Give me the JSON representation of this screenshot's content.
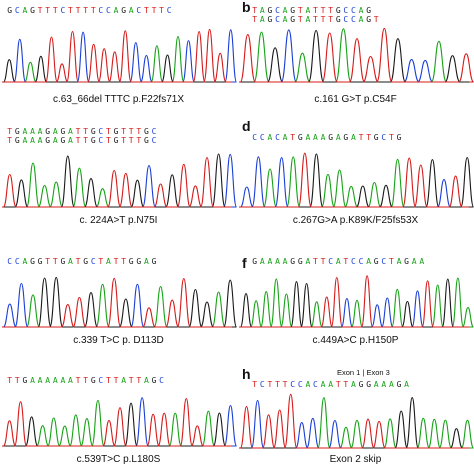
{
  "colors": {
    "A": "#17a317",
    "C": "#1b3fd6",
    "G": "#1a1a1a",
    "T": "#d61b1b"
  },
  "panels": [
    {
      "id": "a",
      "letter": "",
      "seq_top": "",
      "seq": "GCAGTTTCTTTTCCAGACTTTC",
      "caption": "c.63_66del TTTC  p.F22fs71X"
    },
    {
      "id": "b",
      "letter": "b",
      "seq_top": "TAGCAGTATTTGCCAG",
      "seq": "TAGCAGTATTTGCCAGT",
      "caption": "c.161 G>T  p.C54F"
    },
    {
      "id": "c",
      "letter": "",
      "seq_top": "TGAAAGAGATTGCTGTTTGC",
      "seq": "TGAAAGAGATTGCTGTTTGC",
      "caption": "c. 224A>T  p.N75I"
    },
    {
      "id": "d",
      "letter": "d",
      "seq_top": "",
      "seq": "CCACATGAAAGAGATTGCTG",
      "caption": "c.267G>A  p.K89K/F25fs53X"
    },
    {
      "id": "e",
      "letter": "",
      "seq_top": "",
      "seq": "CCAGGTTGATGCTATTGGAG",
      "caption": "c.339 T>C  p. D113D"
    },
    {
      "id": "f",
      "letter": "f",
      "seq_top": "",
      "seq": "GAAAAGGATTCATCCAGCTAGAA",
      "caption": "c.449A>C p.H150P"
    },
    {
      "id": "g",
      "letter": "",
      "seq_top": "",
      "seq": "TTGAAAAAATTGCTTATTAGC",
      "caption": "c.539T>C  p.L180S"
    },
    {
      "id": "h",
      "letter": "h",
      "seq_top": "",
      "seq": "TCTTTCCACAATTAGGAAAGA",
      "caption": "Exon 2 skip"
    }
  ],
  "exon_labels": {
    "left": "Exon 1",
    "divider": "|",
    "right": "Exon 3"
  }
}
